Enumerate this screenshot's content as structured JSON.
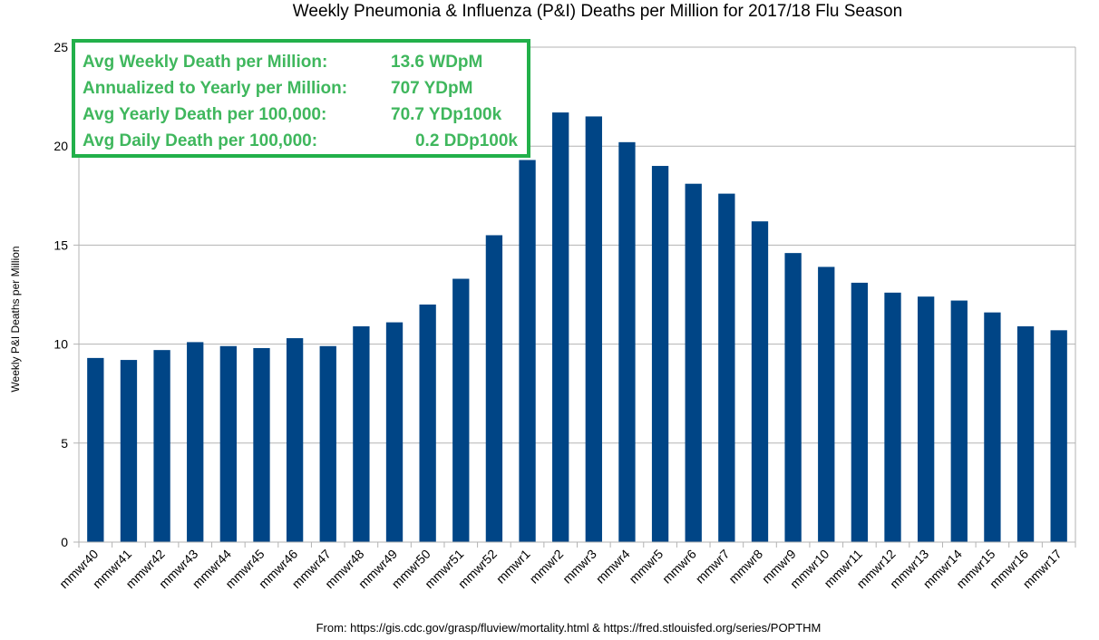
{
  "colors": {
    "bar": "#004586",
    "grid": "#b3b3b3",
    "stats_text": "#3fb75d",
    "stats_border": "#22b04a"
  },
  "stats_box": {
    "rows": [
      {
        "label": "Avg Weekly Death per Million:",
        "value": "13.6 WDpM"
      },
      {
        "label": "Annualized to Yearly per Million:",
        "value": "707 YDpM"
      },
      {
        "label": "Avg Yearly Death per 100,000:",
        "value": "70.7 YDp100k"
      },
      {
        "label": "Avg Daily Death per 100,000:",
        "value": "0.2 DDp100k"
      }
    ]
  },
  "source_note": "From: https://gis.cdc.gov/grasp/fluview/mortality.html & https://fred.stlouisfed.org/series/POPTHM",
  "chart_data": {
    "type": "bar",
    "title": "Weekly Pneumonia & Influenza (P&I) Deaths per Million for 2017/18 Flu Season",
    "xlabel": "",
    "ylabel": "Weekly P&I Deaths per Million",
    "ylim": [
      0,
      25
    ],
    "yticks": [
      0,
      5,
      10,
      15,
      20,
      25
    ],
    "grid": true,
    "legend": "none",
    "categories": [
      "mmwr40",
      "mmwr41",
      "mmwr42",
      "mmwr43",
      "mmwr44",
      "mmwr45",
      "mmwr46",
      "mmwr47",
      "mmwr48",
      "mmwr49",
      "mmwr50",
      "mmwr51",
      "mmwr52",
      "mmwr1",
      "mmwr2",
      "mmwr3",
      "mmwr4",
      "mmwr5",
      "mmwr6",
      "mmwr7",
      "mmwr8",
      "mmwr9",
      "mmwr10",
      "mmwr11",
      "mmwr12",
      "mmwr13",
      "mmwr14",
      "mmwr15",
      "mmwr16",
      "mmwr17"
    ],
    "values": [
      9.3,
      9.2,
      9.7,
      10.1,
      9.9,
      9.8,
      10.3,
      9.9,
      10.9,
      11.1,
      12.0,
      13.3,
      15.5,
      19.3,
      21.7,
      21.5,
      20.2,
      19.0,
      18.1,
      17.6,
      16.2,
      14.6,
      13.9,
      13.1,
      12.6,
      12.4,
      12.2,
      11.6,
      10.9,
      10.7
    ]
  }
}
